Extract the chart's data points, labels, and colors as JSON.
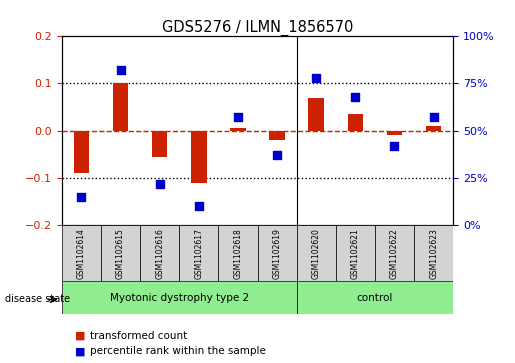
{
  "title": "GDS5276 / ILMN_1856570",
  "samples": [
    "GSM1102614",
    "GSM1102615",
    "GSM1102616",
    "GSM1102617",
    "GSM1102618",
    "GSM1102619",
    "GSM1102620",
    "GSM1102621",
    "GSM1102622",
    "GSM1102623"
  ],
  "red_values": [
    -0.09,
    0.1,
    -0.055,
    -0.11,
    0.005,
    -0.02,
    0.07,
    0.035,
    -0.01,
    0.01
  ],
  "blue_values": [
    15,
    82,
    22,
    10,
    57,
    37,
    78,
    68,
    42,
    57
  ],
  "groups": [
    {
      "label": "Myotonic dystrophy type 2",
      "start": 0,
      "end": 6,
      "color": "#90EE90"
    },
    {
      "label": "control",
      "start": 6,
      "end": 10,
      "color": "#90EE90"
    }
  ],
  "group_separator": 5.5,
  "ylim_left": [
    -0.2,
    0.2
  ],
  "ylim_right": [
    0,
    100
  ],
  "yticks_left": [
    -0.2,
    -0.1,
    0.0,
    0.1,
    0.2
  ],
  "yticks_right": [
    0,
    25,
    50,
    75,
    100
  ],
  "ytick_labels_right": [
    "0%",
    "25%",
    "50%",
    "75%",
    "100%"
  ],
  "hlines_dotted": [
    0.1,
    -0.1
  ],
  "hline_dashed": 0.0,
  "bar_color": "#cc2200",
  "dot_color": "#0000cc",
  "background_color": "#ffffff",
  "plot_bg_color": "#ffffff",
  "disease_state_label": "disease state",
  "legend_items": [
    {
      "label": "transformed count",
      "color": "#cc2200"
    },
    {
      "label": "percentile rank within the sample",
      "color": "#0000cc"
    }
  ],
  "bar_width": 0.4,
  "dot_size": 28
}
